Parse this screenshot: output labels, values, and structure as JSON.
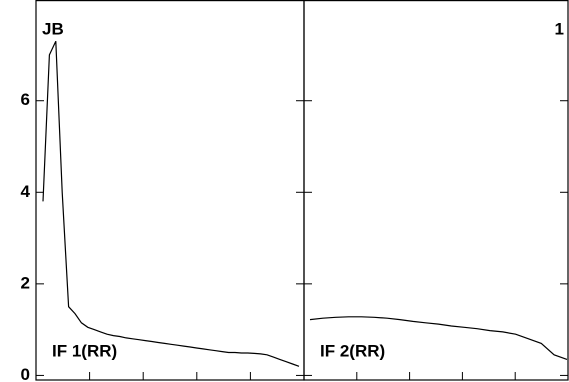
{
  "chart_data": [
    {
      "type": "line",
      "label": "JB",
      "inset": "IF 1(RR)",
      "color": "#000000",
      "ylim": [
        -0.1,
        8.2
      ],
      "yticks": [
        0,
        2,
        4,
        6
      ],
      "values": [
        3.8,
        7.0,
        7.3,
        4.0,
        1.5,
        1.35,
        1.15,
        1.05,
        1.0,
        0.95,
        0.9,
        0.87,
        0.85,
        0.82,
        0.8,
        0.78,
        0.76,
        0.74,
        0.72,
        0.7,
        0.68,
        0.66,
        0.64,
        0.62,
        0.6,
        0.58,
        0.56,
        0.54,
        0.52,
        0.5,
        0.5,
        0.49,
        0.49,
        0.48,
        0.47,
        0.45,
        0.4,
        0.35,
        0.3,
        0.25,
        0.2
      ]
    },
    {
      "type": "line",
      "label": "1",
      "inset": "IF 2(RR)",
      "color": "#000000",
      "ylim": [
        -0.1,
        8.2
      ],
      "yticks": [
        0,
        2,
        4,
        6
      ],
      "values": [
        1.22,
        1.25,
        1.27,
        1.28,
        1.28,
        1.27,
        1.25,
        1.22,
        1.18,
        1.15,
        1.12,
        1.08,
        1.05,
        1.02,
        0.98,
        0.95,
        0.9,
        0.8,
        0.7,
        0.45,
        0.35
      ]
    }
  ]
}
